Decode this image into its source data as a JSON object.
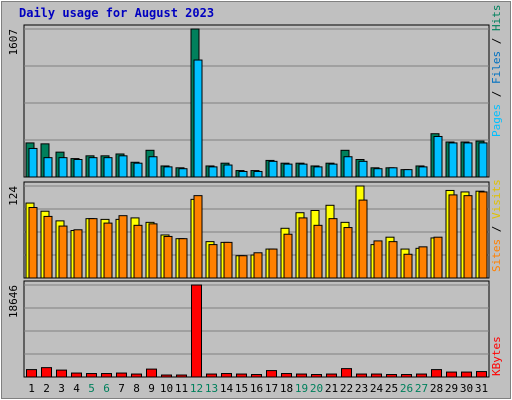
{
  "title": "Daily usage for August 2023",
  "colors": {
    "background": "#C0C0C0",
    "panel": "#C0C0C0",
    "grid": "#808080",
    "title": "#0000C0",
    "hits": "#00805C",
    "files": "#00C0FF",
    "sites": "#FF8000",
    "visits": "#FFFF00",
    "kbytes": "#FF0000",
    "weekday": "#000000",
    "weekend": "#00805C"
  },
  "labels": {
    "pages": "Pages",
    "files": "Files",
    "hits": "Hits",
    "sites": "Sites",
    "visits": "Visits",
    "kbytes": "KBytes",
    "sep": " / "
  },
  "chart_data": [
    {
      "type": "bar",
      "name": "hits-files-pages",
      "ymax_label": "1607",
      "ylim": [
        0,
        1607
      ],
      "series": [
        {
          "name": "Hits",
          "values": [
            370,
            360,
            270,
            200,
            230,
            230,
            250,
            160,
            290,
            120,
            100,
            1607,
            120,
            150,
            70,
            70,
            180,
            150,
            150,
            120,
            150,
            290,
            190,
            100,
            100,
            80,
            120,
            470,
            380,
            380,
            390
          ]
        },
        {
          "name": "Files",
          "values": [
            310,
            210,
            210,
            190,
            210,
            210,
            230,
            150,
            220,
            110,
            90,
            1270,
            110,
            130,
            60,
            60,
            170,
            140,
            140,
            110,
            140,
            220,
            170,
            90,
            100,
            80,
            110,
            440,
            370,
            370,
            370
          ]
        },
        {
          "name": "Pages",
          "values": [
            0,
            0,
            0,
            0,
            0,
            0,
            0,
            0,
            0,
            0,
            0,
            0,
            0,
            0,
            0,
            0,
            0,
            0,
            0,
            0,
            0,
            0,
            0,
            0,
            0,
            0,
            0,
            0,
            0,
            0,
            0
          ]
        }
      ]
    },
    {
      "type": "bar",
      "name": "visits-sites",
      "ymax_label": "124",
      "ylim": [
        0,
        124
      ],
      "series": [
        {
          "name": "Visits",
          "values": [
            101,
            90,
            77,
            64,
            80,
            79,
            79,
            81,
            75,
            58,
            53,
            106,
            49,
            48,
            30,
            31,
            39,
            67,
            88,
            91,
            98,
            75,
            124,
            45,
            55,
            39,
            40,
            54,
            118,
            116,
            117
          ]
        },
        {
          "name": "Sites",
          "values": [
            95,
            83,
            70,
            65,
            80,
            74,
            84,
            71,
            73,
            56,
            53,
            111,
            45,
            48,
            30,
            34,
            39,
            59,
            81,
            71,
            80,
            68,
            105,
            50,
            49,
            32,
            42,
            55,
            112,
            111,
            116
          ]
        }
      ]
    },
    {
      "type": "bar",
      "name": "kbytes",
      "ymax_label": "18646",
      "ylim": [
        0,
        18646
      ],
      "series": [
        {
          "name": "KBytes",
          "values": [
            1500,
            1900,
            1400,
            800,
            700,
            700,
            800,
            600,
            1600,
            400,
            400,
            18646,
            600,
            700,
            600,
            500,
            1300,
            700,
            600,
            500,
            600,
            1700,
            600,
            600,
            500,
            500,
            600,
            1500,
            1000,
            1000,
            1100
          ]
        }
      ]
    }
  ],
  "x_labels": [
    "1",
    "2",
    "3",
    "4",
    "5",
    "6",
    "7",
    "8",
    "9",
    "10",
    "11",
    "12",
    "13",
    "14",
    "15",
    "16",
    "17",
    "18",
    "19",
    "20",
    "21",
    "22",
    "23",
    "24",
    "25",
    "26",
    "27",
    "28",
    "29",
    "30",
    "31"
  ],
  "weekend_days": [
    5,
    6,
    12,
    13,
    19,
    20,
    26,
    27
  ]
}
